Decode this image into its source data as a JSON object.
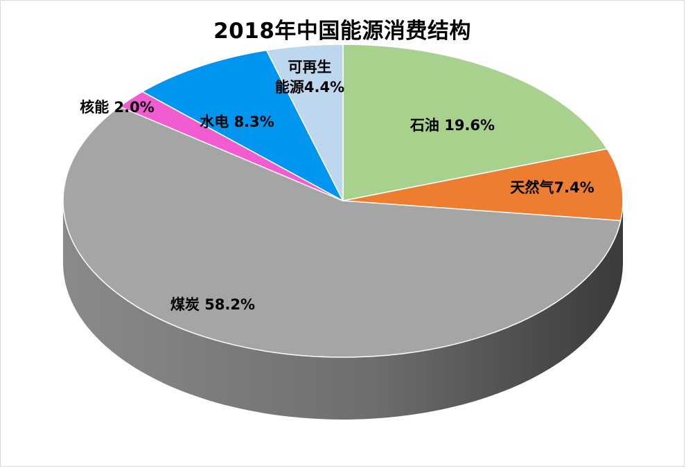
{
  "chart_data": {
    "type": "pie",
    "title": "2018年中国能源消费结构",
    "three_d": true,
    "start_angle_deg": 90,
    "direction": "clockwise",
    "slices": [
      {
        "name": "石油",
        "value": 19.6,
        "label": "石油 19.6%",
        "color": "#a9d18e",
        "label_lines": [
          "石油 19.6%"
        ]
      },
      {
        "name": "天然气",
        "value": 7.4,
        "label": "天然气7.4%",
        "color": "#ed7d31",
        "label_lines": [
          "天然气7.4%"
        ]
      },
      {
        "name": "煤炭",
        "value": 58.2,
        "label": "煤炭 58.2%",
        "color": "#a5a5a5",
        "label_lines": [
          "煤炭 58.2%"
        ]
      },
      {
        "name": "核能",
        "value": 2.0,
        "label": "核能 2.0%",
        "color": "#f15dd1",
        "label_lines": [
          "核能 2.0%"
        ]
      },
      {
        "name": "水电",
        "value": 8.3,
        "label": "水电 8.3%",
        "color": "#0096f0",
        "label_lines": [
          "水电 8.3%"
        ]
      },
      {
        "name": "可再生能源",
        "value": 4.4,
        "label": "可再生能源4.4%",
        "color": "#bdd7ee",
        "label_lines": [
          "可再生",
          "能源4.4%"
        ]
      }
    ]
  }
}
